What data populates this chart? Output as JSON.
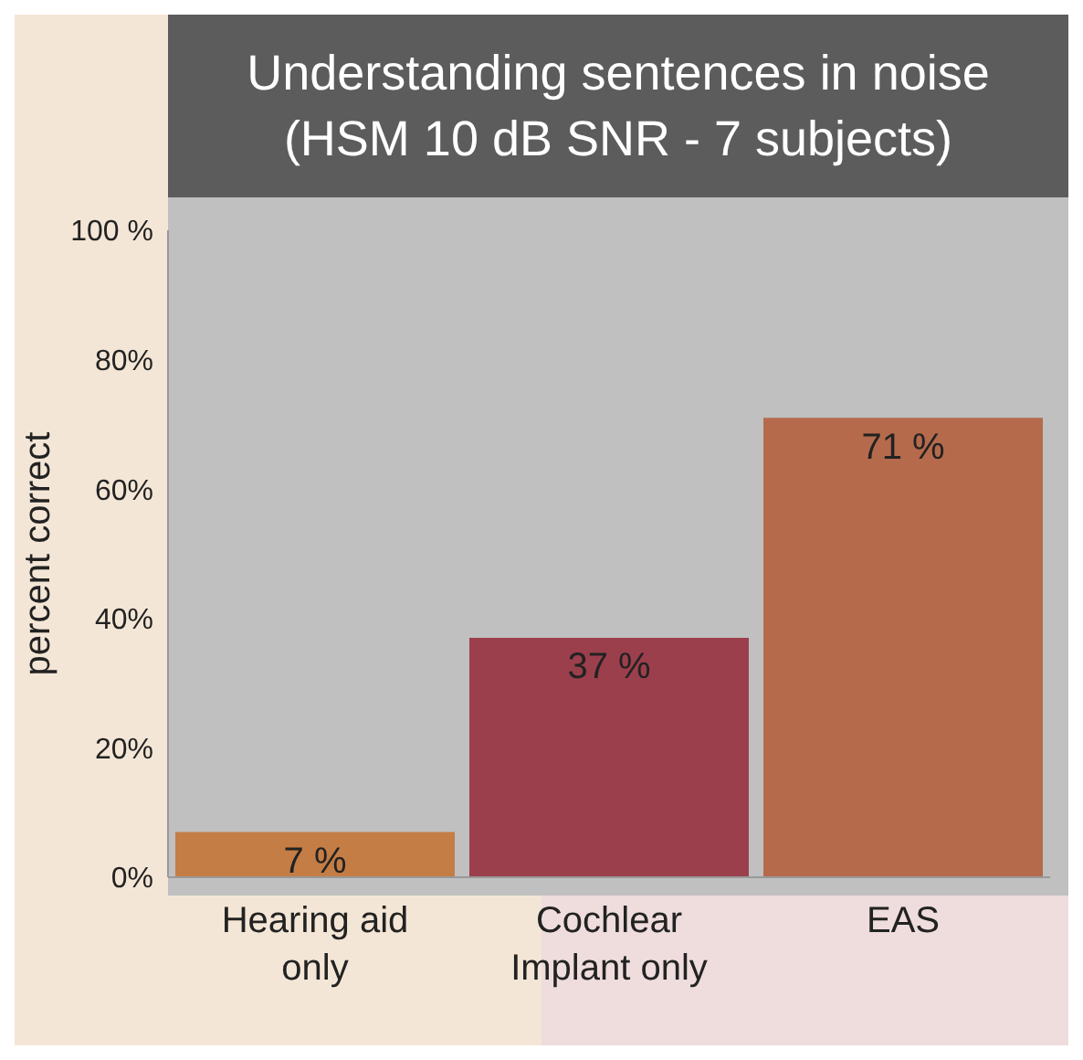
{
  "chart_data": {
    "type": "bar",
    "title": "Understanding sentences in noise",
    "subtitle": "(HSM 10 dB SNR - 7 subjects)",
    "ylabel": "percent correct",
    "categories": [
      "Hearing aid only",
      "Cochlear Implant only",
      "EAS"
    ],
    "values": [
      7,
      37,
      71
    ],
    "colors": [
      "#c47d45",
      "#9c3f4c",
      "#b56a4c"
    ],
    "value_labels": [
      "7 %",
      "37 %",
      "71 %"
    ],
    "ylim": [
      0,
      100
    ],
    "yticks": [
      {
        "value": 0,
        "label": "0%"
      },
      {
        "value": 20,
        "label": "20%"
      },
      {
        "value": 40,
        "label": "40%"
      },
      {
        "value": 60,
        "label": "60%"
      },
      {
        "value": 80,
        "label": "80%"
      },
      {
        "value": 100,
        "label": "100 %"
      }
    ],
    "legend": false
  }
}
